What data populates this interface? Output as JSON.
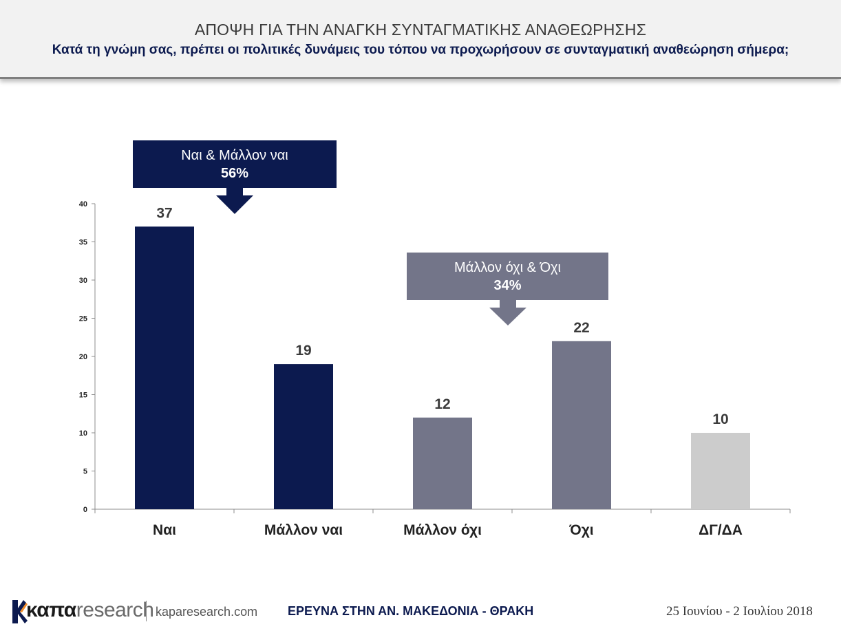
{
  "header": {
    "title": "ΑΠΟΨΗ ΓΙΑ ΤΗΝ ΑΝΑΓΚΗ ΣΥΝΤΑΓΜΑΤΙΚΗΣ ΑΝΑΘΕΩΡΗΣΗΣ",
    "subtitle": "Κατά τη γνώμη σας, πρέπει οι πολιτικές δυνάμεις του τόπου να προχωρήσουν σε συνταγματική αναθεώρηση σήμερα;"
  },
  "chart_data": {
    "type": "bar",
    "categories": [
      "Ναι",
      "Μάλλον ναι",
      "Μάλλον όχι",
      "Όχι",
      "ΔΓ/ΔΑ"
    ],
    "values": [
      37,
      19,
      12,
      22,
      10
    ],
    "bar_colors": [
      "#0c1a4f",
      "#0c1a4f",
      "#737589",
      "#737589",
      "#cccccc"
    ],
    "ylim": [
      0,
      40
    ],
    "yticks": [
      0,
      5,
      10,
      15,
      20,
      25,
      30,
      35,
      40
    ],
    "grid": false,
    "annotations": [
      {
        "label": "Ναι & Μάλλον ναι",
        "value": "56%",
        "color": "#0c1a4f",
        "arrow_category": 0
      },
      {
        "label": "Μάλλον όχι & Όχι",
        "value": "34%",
        "color": "#737589",
        "arrow_category": 2
      }
    ]
  },
  "footer": {
    "logo_bold": "καπα",
    "logo_light": "research",
    "website": "kaparesearch.com",
    "survey": "ΕΡΕΥΝΑ ΣΤΗΝ ΑΝ. ΜΑΚΕΔΟΝΙΑ - ΘΡΑΚΗ",
    "dates": "25 Ιουνίου - 2 Ιουλίου 2018",
    "logo_colors": {
      "orange": "#f28c28",
      "navy": "#0c1a4f"
    }
  }
}
